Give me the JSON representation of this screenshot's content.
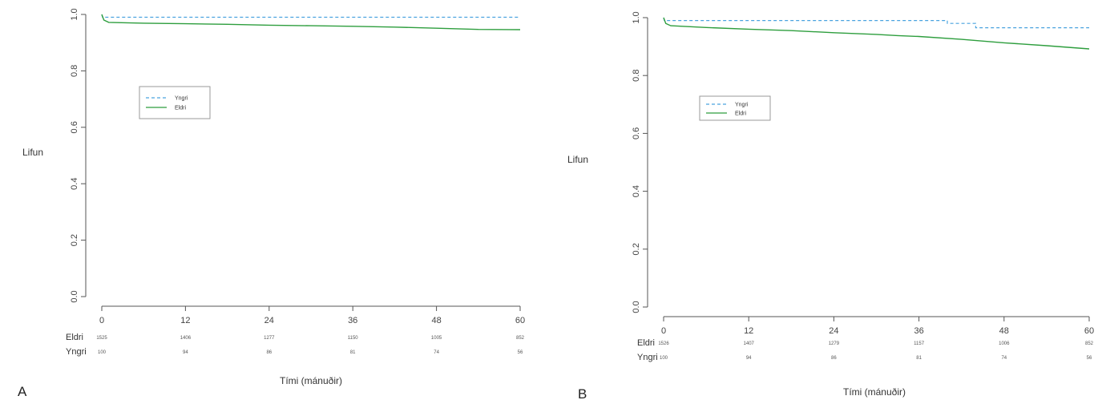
{
  "chart_data": [
    {
      "type": "line",
      "panel_label": "A",
      "xlabel": "Tími (mánuðir)",
      "ylabel": "Lifun",
      "xlim": [
        0,
        60
      ],
      "ylim": [
        0.0,
        1.0
      ],
      "x_ticks": [
        "0",
        "12",
        "24",
        "36",
        "48",
        "60"
      ],
      "y_ticks": [
        "0.0",
        "0.2",
        "0.4",
        "0.6",
        "0.8",
        "1.0"
      ],
      "grid": false,
      "legend": {
        "position": "upper-left",
        "entries": [
          "Yngri",
          "Eldri"
        ]
      },
      "series": [
        {
          "name": "Yngri",
          "color": "#4aa3df",
          "style": "dashed",
          "points": [
            [
              0,
              1.0
            ],
            [
              0.1,
              0.99
            ],
            [
              60,
              0.99
            ]
          ]
        },
        {
          "name": "Eldri",
          "color": "#2e9e3e",
          "style": "solid",
          "points": [
            [
              0,
              1.0
            ],
            [
              0.3,
              0.98
            ],
            [
              1,
              0.972
            ],
            [
              6,
              0.969
            ],
            [
              12,
              0.967
            ],
            [
              18,
              0.965
            ],
            [
              24,
              0.962
            ],
            [
              30,
              0.96
            ],
            [
              36,
              0.958
            ],
            [
              42,
              0.955
            ],
            [
              48,
              0.951
            ],
            [
              54,
              0.947
            ],
            [
              60,
              0.946
            ]
          ]
        }
      ],
      "risk_table": {
        "times": [
          "0",
          "12",
          "24",
          "36",
          "48",
          "60"
        ],
        "rows": [
          {
            "label": "Eldri",
            "values": [
              "1525",
              "1406",
              "1277",
              "1150",
              "1005",
              "852"
            ]
          },
          {
            "label": "Yngri",
            "values": [
              "100",
              "94",
              "86",
              "81",
              "74",
              "56"
            ]
          }
        ]
      }
    },
    {
      "type": "line",
      "panel_label": "B",
      "xlabel": "Tími (mánuðir)",
      "ylabel": "Lifun",
      "xlim": [
        0,
        60
      ],
      "ylim": [
        0.0,
        1.0
      ],
      "x_ticks": [
        "0",
        "12",
        "24",
        "36",
        "48",
        "60"
      ],
      "y_ticks": [
        "0.0",
        "0.2",
        "0.4",
        "0.6",
        "0.8",
        "1.0"
      ],
      "grid": false,
      "legend": {
        "position": "upper-left",
        "entries": [
          "Yngri",
          "Eldri"
        ]
      },
      "series": [
        {
          "name": "Yngri",
          "color": "#4aa3df",
          "style": "dashed",
          "points": [
            [
              0,
              1.0
            ],
            [
              0.1,
              0.99
            ],
            [
              40,
              0.99
            ],
            [
              40,
              0.98
            ],
            [
              44,
              0.98
            ],
            [
              44,
              0.965
            ],
            [
              60,
              0.965
            ]
          ]
        },
        {
          "name": "Eldri",
          "color": "#2e9e3e",
          "style": "solid",
          "points": [
            [
              0,
              1.0
            ],
            [
              0.3,
              0.98
            ],
            [
              1,
              0.972
            ],
            [
              6,
              0.966
            ],
            [
              12,
              0.96
            ],
            [
              18,
              0.955
            ],
            [
              24,
              0.948
            ],
            [
              30,
              0.942
            ],
            [
              33,
              0.938
            ],
            [
              36,
              0.935
            ],
            [
              42,
              0.925
            ],
            [
              48,
              0.913
            ],
            [
              54,
              0.903
            ],
            [
              60,
              0.892
            ]
          ]
        }
      ],
      "risk_table": {
        "times": [
          "0",
          "12",
          "24",
          "36",
          "48",
          "60"
        ],
        "rows": [
          {
            "label": "Eldri",
            "values": [
              "1526",
              "1407",
              "1279",
              "1157",
              "1006",
              "852"
            ]
          },
          {
            "label": "Yngri",
            "values": [
              "100",
              "94",
              "86",
              "81",
              "74",
              "56"
            ]
          }
        ]
      }
    }
  ]
}
